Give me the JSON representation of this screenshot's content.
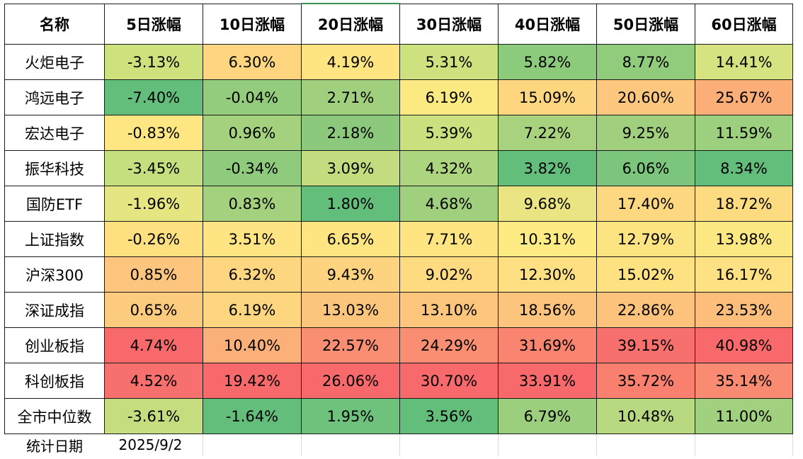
{
  "header": [
    "名称",
    "5日涨幅",
    "10日涨幅",
    "20日涨幅",
    "30日涨幅",
    "40日涨幅",
    "50日涨幅",
    "60日涨幅"
  ],
  "rows": [
    {
      "name": "火炬电子",
      "values": [
        "-3.13%",
        "6.30%",
        "4.19%",
        "5.31%",
        "5.82%",
        "8.77%",
        "14.41%"
      ],
      "colors": [
        "#cde17d",
        "#ffd67f",
        "#fee582",
        "#cde27e",
        "#8cca7c",
        "#91cc7d",
        "#d7e381"
      ]
    },
    {
      "name": "鸿远电子",
      "values": [
        "-7.40%",
        "-0.04%",
        "2.71%",
        "6.19%",
        "15.09%",
        "20.60%",
        "25.67%"
      ],
      "colors": [
        "#63be7b",
        "#93cc7d",
        "#a0d07e",
        "#fbe982",
        "#fed680",
        "#fdc77d",
        "#fcae79"
      ]
    },
    {
      "name": "宏达电子",
      "values": [
        "-0.83%",
        "0.96%",
        "2.18%",
        "5.39%",
        "7.22%",
        "9.25%",
        "11.59%"
      ],
      "colors": [
        "#fee683",
        "#a3d17e",
        "#8cc97c",
        "#cbe07e",
        "#a9d27f",
        "#a0d07e",
        "#9ccf7e"
      ]
    },
    {
      "name": "振华科技",
      "values": [
        "-3.45%",
        "-0.34%",
        "3.09%",
        "4.32%",
        "3.82%",
        "6.06%",
        "8.34%"
      ],
      "colors": [
        "#c5de7e",
        "#8fcb7d",
        "#c2dc7f",
        "#add47e",
        "#63be7b",
        "#7bc57c",
        "#63be7b"
      ]
    },
    {
      "name": "国防ETF",
      "values": [
        "-1.96%",
        "0.83%",
        "1.80%",
        "4.68%",
        "9.68%",
        "17.40%",
        "18.72%"
      ],
      "colors": [
        "#e5e582",
        "#a3d17e",
        "#63be7b",
        "#a0d07e",
        "#eae582",
        "#fdd880",
        "#fddb81"
      ]
    },
    {
      "name": "上证指数",
      "values": [
        "-0.26%",
        "3.51%",
        "6.65%",
        "7.71%",
        "10.31%",
        "12.79%",
        "13.98%"
      ],
      "colors": [
        "#fee081",
        "#ffe483",
        "#ffe582",
        "#ffe482",
        "#feeb84",
        "#fde482",
        "#fbe883"
      ]
    },
    {
      "name": "沪深300",
      "values": [
        "0.85%",
        "6.32%",
        "9.43%",
        "9.02%",
        "12.30%",
        "15.02%",
        "16.17%"
      ],
      "colors": [
        "#fdc57d",
        "#ffd680",
        "#fdd37f",
        "#fedb81",
        "#fee082",
        "#fee282",
        "#fee182"
      ]
    },
    {
      "name": "深证成指",
      "values": [
        "0.65%",
        "6.19%",
        "13.03%",
        "13.10%",
        "18.56%",
        "22.86%",
        "23.53%"
      ],
      "colors": [
        "#fdcb7e",
        "#ffd680",
        "#fcc57c",
        "#fdc67c",
        "#fdc47d",
        "#fdc27c",
        "#fdbd7b"
      ]
    },
    {
      "name": "创业板指",
      "values": [
        "4.74%",
        "10.40%",
        "22.57%",
        "24.29%",
        "31.69%",
        "39.15%",
        "40.98%"
      ],
      "colors": [
        "#f8696b",
        "#fcb079",
        "#f98e72",
        "#f98e72",
        "#f98570",
        "#f8706d",
        "#f8696b"
      ]
    },
    {
      "name": "科创板指",
      "values": [
        "4.52%",
        "19.42%",
        "26.06%",
        "30.70%",
        "33.91%",
        "35.72%",
        "35.14%"
      ],
      "colors": [
        "#f8706d",
        "#f8696b",
        "#f8696b",
        "#f8696b",
        "#f8696b",
        "#f9806f",
        "#f98b72"
      ]
    },
    {
      "name": "全市中位数",
      "values": [
        "-3.61%",
        "-1.64%",
        "1.95%",
        "3.56%",
        "6.79%",
        "10.48%",
        "11.00%"
      ],
      "colors": [
        "#c5dd7f",
        "#63be7b",
        "#6fc27c",
        "#63be7b",
        "#9bcf7e",
        "#b9d980",
        "#a1d07e"
      ]
    }
  ],
  "footer": {
    "label": "统计日期",
    "date": "2025/9/2"
  }
}
